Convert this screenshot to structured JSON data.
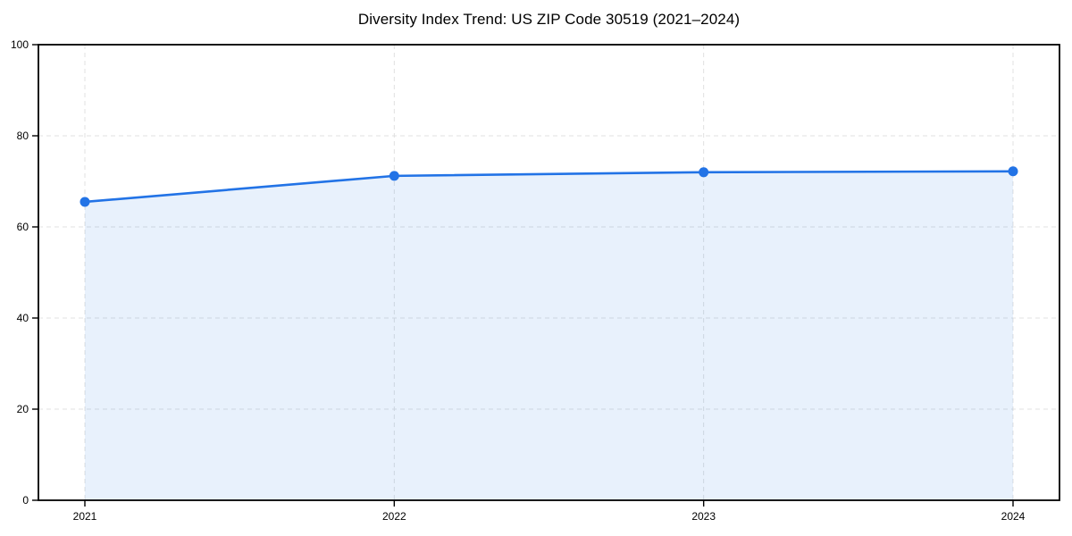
{
  "chart_data": {
    "type": "line",
    "title": "Diversity Index Trend: US ZIP Code 30519 (2021–2024)",
    "x": [
      "2021",
      "2022",
      "2023",
      "2024"
    ],
    "series": [
      {
        "name": "Diversity Index",
        "values": [
          65.5,
          71.2,
          72.0,
          72.2
        ]
      }
    ],
    "xlabel": "",
    "ylabel": "",
    "ylim": [
      0,
      100
    ],
    "yticks": [
      0,
      20,
      40,
      60,
      80,
      100
    ],
    "grid": "dashed-both-axes",
    "legend_position": "none",
    "area_fill": true,
    "colors": {
      "line": "#2273e6",
      "marker": "#2273e6",
      "area_fill": "rgba(34,115,230,0.10)",
      "grid": "#e0e0e0",
      "axis_frame": "#000000",
      "text": "#000000",
      "background": "#ffffff"
    }
  }
}
